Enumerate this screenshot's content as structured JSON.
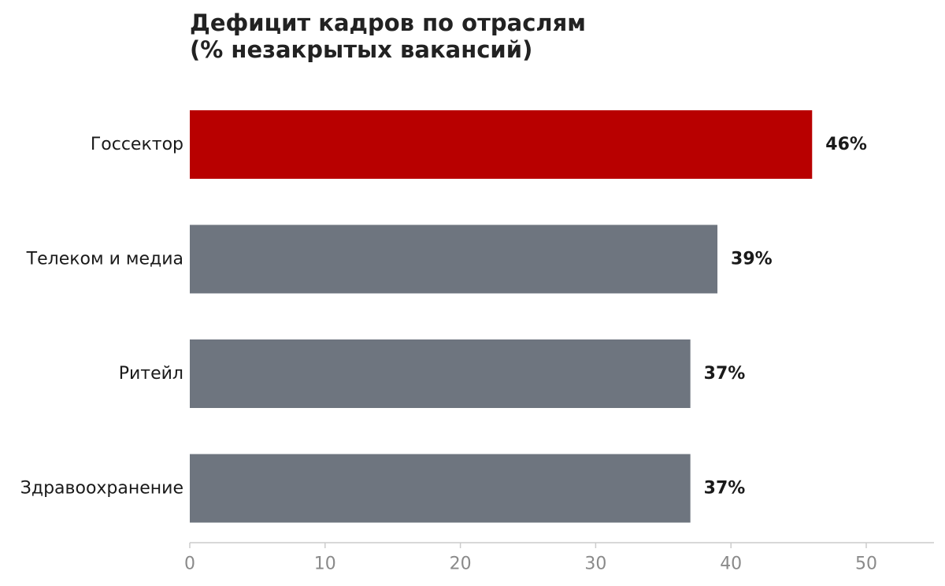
{
  "chart_data": {
    "type": "bar",
    "orientation": "horizontal",
    "title_lines": [
      "Дефицит кадров по отраслям",
      "(% незакрытых вакансий)"
    ],
    "categories": [
      "Госсектор",
      "Телеком и медиа",
      "Ритейл",
      "Здравоохранение"
    ],
    "values": [
      46,
      39,
      37,
      37
    ],
    "value_labels": [
      "46%",
      "39%",
      "37%",
      "37%"
    ],
    "bar_colors": [
      "#b80000",
      "#6e757f",
      "#6e757f",
      "#6e757f"
    ],
    "xlim": [
      0,
      55
    ],
    "xticks": [
      0,
      10,
      20,
      30,
      40,
      50
    ],
    "grid": false,
    "legend": "none"
  }
}
